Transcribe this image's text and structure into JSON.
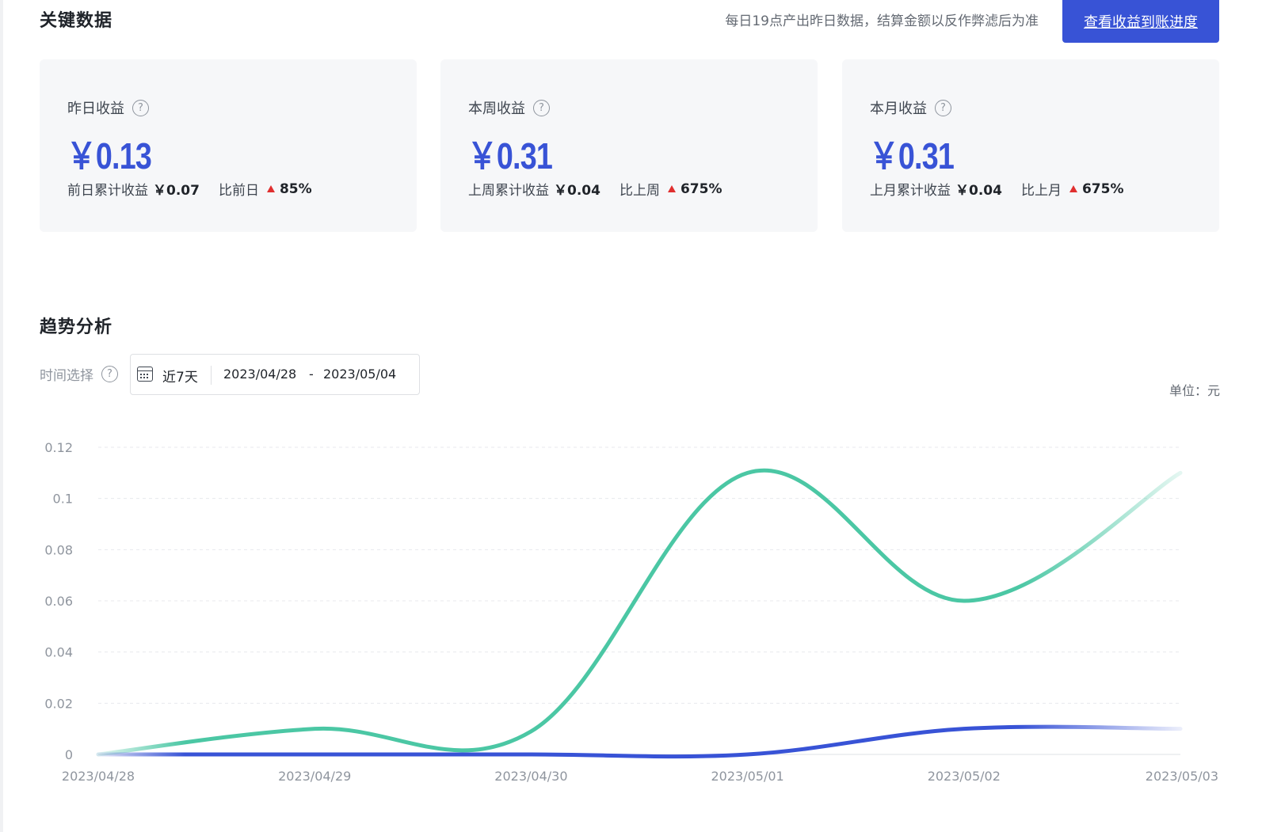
{
  "key_data": {
    "title": "关键数据",
    "notice": "每日19点产出昨日数据，结算金额以反作弊滤后为准",
    "cta_label": "查看收益到账进度"
  },
  "cards": [
    {
      "label": "昨日收益",
      "value": "￥0.13",
      "prev_label": "前日累计收益",
      "prev_value": "￥0.07",
      "cmp_label": "比前日",
      "cmp_value": "85%"
    },
    {
      "label": "本周收益",
      "value": "￥0.31",
      "prev_label": "上周累计收益",
      "prev_value": "￥0.04",
      "cmp_label": "比上周",
      "cmp_value": "675%"
    },
    {
      "label": "本月收益",
      "value": "￥0.31",
      "prev_label": "上月累计收益",
      "prev_value": "￥0.04",
      "cmp_label": "比上月",
      "cmp_value": "675%"
    }
  ],
  "trend": {
    "title": "趋势分析",
    "time_label": "时间选择",
    "preset": "近7天",
    "date_start": "2023/04/28",
    "date_sep": "-",
    "date_end": "2023/05/04",
    "unit": "单位：元"
  },
  "colors": {
    "accent": "#3853d6",
    "series_green": "#4bc7a4",
    "series_blue": "#3853d6",
    "up": "#e02f2f"
  },
  "chart_data": {
    "type": "line",
    "x": [
      "2023/04/28",
      "2023/04/29",
      "2023/04/30",
      "2023/05/01",
      "2023/05/02",
      "2023/05/03"
    ],
    "ylim": [
      0,
      0.12
    ],
    "yticks": [
      "0",
      "0.02",
      "0.04",
      "0.06",
      "0.08",
      "0.1",
      "0.12"
    ],
    "grid": true,
    "series": [
      {
        "values": [
          0,
          0.01,
          0.009,
          0.11,
          0.06,
          0.11
        ],
        "color": "#4bc7a4"
      },
      {
        "values": [
          0,
          0,
          0,
          0,
          0.01,
          0.01
        ],
        "color": "#3853d6"
      }
    ]
  }
}
